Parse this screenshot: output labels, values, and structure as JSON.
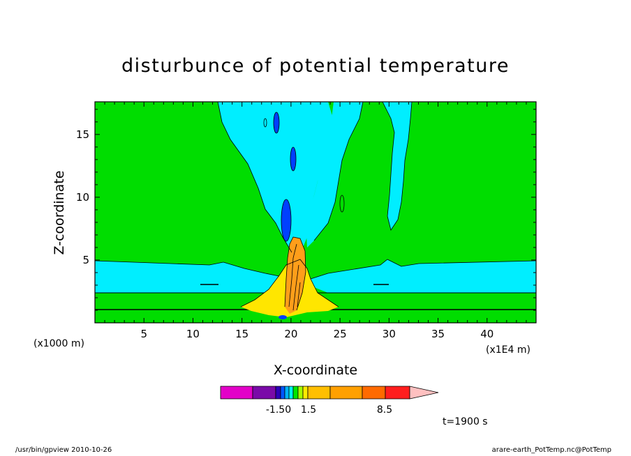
{
  "chart_data": {
    "type": "heatmap",
    "title": "disturbunce of potential temperature",
    "xlabel": "X-coordinate",
    "ylabel": "Z-coordinate",
    "x_unit": "(x1000 m)",
    "x_scale_note": "(x1E4 m)",
    "xlim": [
      0,
      45
    ],
    "ylim": [
      0,
      17.6
    ],
    "x_ticks": [
      5,
      10,
      15,
      20,
      25,
      30,
      35,
      40
    ],
    "y_ticks": [
      5,
      10,
      15
    ],
    "colorbar_labels": [
      "-1.50",
      "1.5",
      "8.5"
    ],
    "colorbar_colors": [
      "#e300c8",
      "#7a0aa8",
      "#2d00b8",
      "#0057ff",
      "#00b4ff",
      "#00f0f0",
      "#00e600",
      "#a6ff00",
      "#ffeb00",
      "#ffbf00",
      "#ffa000",
      "#ff6a00",
      "#ff1e1e",
      "#ff8080",
      "#ffc0c0"
    ],
    "time_label": "t=1900 s",
    "fill_colors": {
      "background": "#00dd00",
      "cyan": "#00eeff",
      "yellow": "#ffe600",
      "orange": "#ff9e1a",
      "blue": "#0040ff"
    }
  },
  "footer": {
    "left": "/usr/bin/gpview   2010-10-26",
    "right": "arare-earth_PotTemp.nc@PotTemp"
  }
}
